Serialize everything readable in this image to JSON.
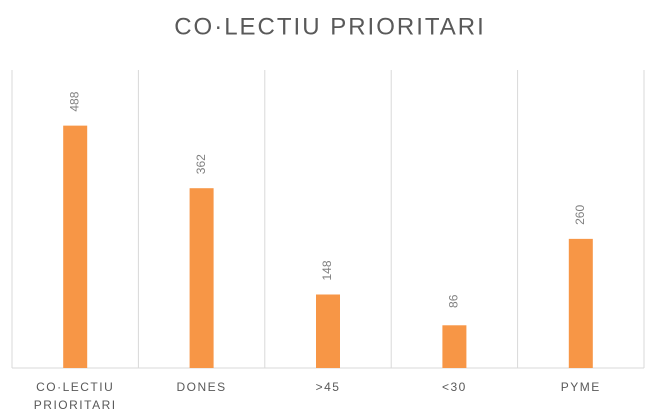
{
  "chart_data": {
    "type": "bar",
    "title": "CO·LECTIU PRIORITARI",
    "categories": [
      "CO·LECTIU PRIORITARI",
      "DONES",
      ">45",
      "<30",
      "PYME"
    ],
    "values": [
      488,
      362,
      148,
      86,
      260
    ],
    "color": "#f79646",
    "ylim": [
      0,
      600
    ],
    "grid": true
  }
}
